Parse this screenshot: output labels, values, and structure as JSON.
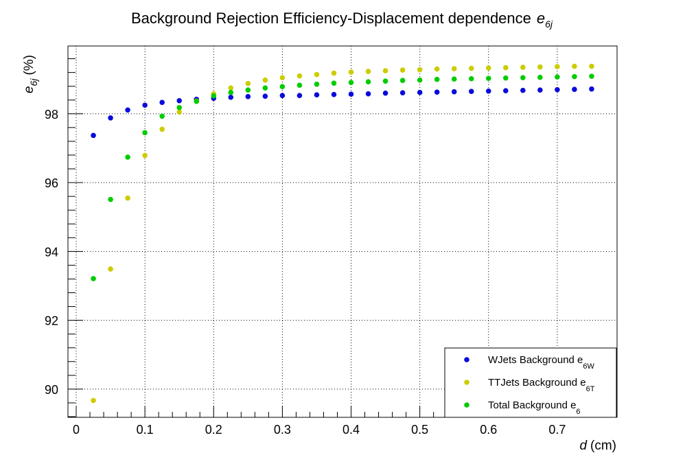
{
  "chart_data": {
    "type": "scatter",
    "title": "Background Rejection Efficiency-Displacement dependence",
    "title_symbol": "e",
    "title_symbol_sub": "6j",
    "xlabel_symbol": "d",
    "xlabel_unit": "(cm)",
    "ylabel_symbol": "e",
    "ylabel_sub": "6j",
    "ylabel_unit": "(%)",
    "xlim": [
      -0.012,
      0.787
    ],
    "ylim": [
      89.18,
      99.97
    ],
    "x_ticks": [
      "0",
      "0.1",
      "0.2",
      "0.3",
      "0.4",
      "0.5",
      "0.6",
      "0.7"
    ],
    "y_ticks": [
      "90",
      "92",
      "94",
      "96",
      "98"
    ],
    "grid": true,
    "legend_position": "bottom-right",
    "x": [
      0.025,
      0.05,
      0.075,
      0.1,
      0.125,
      0.15,
      0.175,
      0.2,
      0.225,
      0.25,
      0.275,
      0.3,
      0.325,
      0.35,
      0.375,
      0.4,
      0.425,
      0.45,
      0.475,
      0.5,
      0.525,
      0.55,
      0.575,
      0.6,
      0.625,
      0.65,
      0.675,
      0.7,
      0.725,
      0.75
    ],
    "series": [
      {
        "name": "WJets Background",
        "legend_sub": "6W",
        "color": "#0a0adc",
        "values": [
          97.37,
          97.88,
          98.11,
          98.25,
          98.33,
          98.38,
          98.42,
          98.45,
          98.48,
          98.5,
          98.51,
          98.53,
          98.53,
          98.55,
          98.56,
          98.57,
          98.58,
          98.6,
          98.61,
          98.62,
          98.63,
          98.64,
          98.65,
          98.66,
          98.67,
          98.68,
          98.69,
          98.7,
          98.71,
          98.72
        ]
      },
      {
        "name": "TTJets Background",
        "legend_sub": "6T",
        "color": "#cccc00",
        "values": [
          89.67,
          93.49,
          95.55,
          96.79,
          97.55,
          98.05,
          98.37,
          98.58,
          98.75,
          98.88,
          98.98,
          99.05,
          99.1,
          99.14,
          99.18,
          99.21,
          99.23,
          99.25,
          99.27,
          99.28,
          99.3,
          99.31,
          99.32,
          99.33,
          99.34,
          99.35,
          99.36,
          99.37,
          99.38,
          99.38
        ]
      },
      {
        "name": "Total Background",
        "legend_sub": "6",
        "color": "#00cc00",
        "values": [
          93.21,
          95.51,
          96.74,
          97.45,
          97.93,
          98.18,
          98.36,
          98.52,
          98.62,
          98.69,
          98.75,
          98.79,
          98.83,
          98.86,
          98.89,
          98.91,
          98.93,
          98.95,
          98.97,
          98.98,
          99.0,
          99.01,
          99.02,
          99.03,
          99.04,
          99.05,
          99.06,
          99.07,
          99.08,
          99.09
        ]
      }
    ]
  }
}
